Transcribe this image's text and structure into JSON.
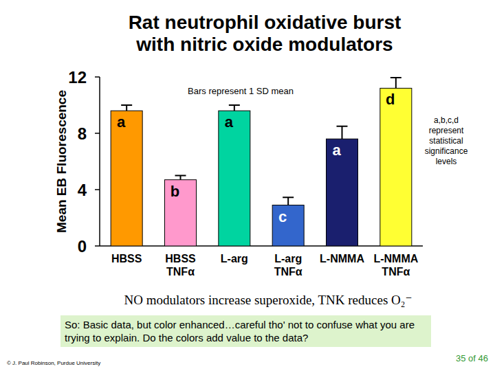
{
  "chart_data": {
    "type": "bar",
    "title": "Rat neutrophil oxidative burst with nitric oxide modulators",
    "y_label": "Mean EB Fluorescence",
    "categories": [
      "HBSS",
      "HBSS TNFα",
      "L-arg",
      "L-arg TNFα",
      "L-NMMA",
      "L-NMMA TNFα"
    ],
    "values": [
      9.6,
      4.7,
      9.6,
      2.9,
      7.6,
      11.2
    ],
    "errors": [
      0.4,
      0.3,
      0.4,
      0.55,
      0.9,
      0.75
    ],
    "significance_labels": [
      "a",
      "b",
      "a",
      "c",
      "a",
      "d"
    ],
    "colors": [
      "#ff9900",
      "#ff99cc",
      "#00d4a0",
      "#3366cc",
      "#1a1f6e",
      "#ffff33"
    ],
    "ylim": [
      0,
      12
    ],
    "yticks": [
      0,
      4,
      8,
      12
    ],
    "grid": false,
    "annotations": [
      "Bars represent 1 SD mean",
      "a,b,c,d represent statistical significance levels"
    ]
  },
  "page": {
    "caption": "NO modulators increase superoxide, TNK reduces O₂⁻",
    "note": "So: Basic data, but color enhanced…careful tho' not to confuse what you are trying to explain. Do the colors add value to the data?",
    "footer": "© J. Paul Robinson, Purdue University",
    "page_number": "35 of 46"
  }
}
